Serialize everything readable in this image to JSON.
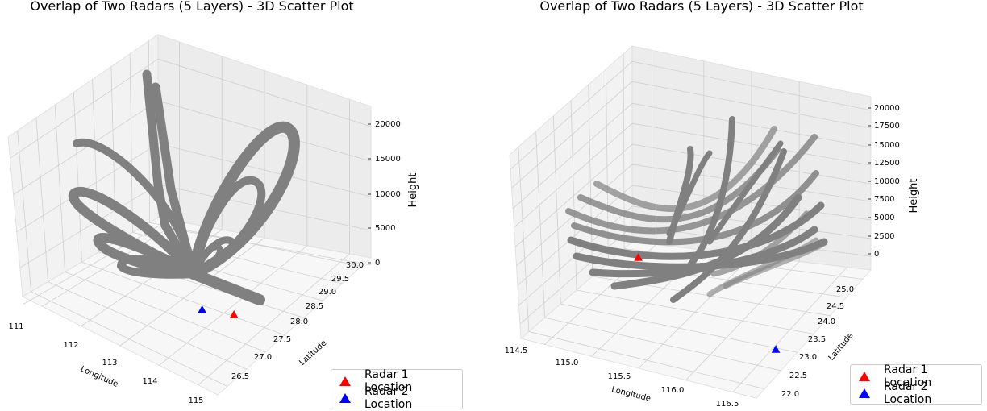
{
  "chart_data": [
    {
      "type": "scatter",
      "title": "Overlap of Two Radars (5 Layers) - 3D Scatter Plot",
      "xlabel": "Longitude",
      "ylabel": "Latitude",
      "zlabel": "Height",
      "x_ticks": [
        "111",
        "112",
        "113",
        "114",
        "115"
      ],
      "y_ticks": [
        "26.5",
        "27.0",
        "27.5",
        "28.0",
        "28.5",
        "29.0",
        "29.5",
        "30.0"
      ],
      "z_ticks": [
        "0",
        "5000",
        "10000",
        "15000",
        "20000"
      ],
      "xlim": [
        110.6,
        115.1
      ],
      "ylim": [
        26.3,
        30.3
      ],
      "zlim": [
        0,
        22000
      ],
      "point_color": "#808080",
      "radars": [
        {
          "name": "Radar 1 Location",
          "lon": 113.6,
          "lat": 28.7,
          "height": 0,
          "color": "#ff0000"
        },
        {
          "name": "Radar 2 Location",
          "lon": 113.1,
          "lat": 28.4,
          "height": 0,
          "color": "#0000ff"
        }
      ],
      "legend": {
        "position": "bottom-right",
        "entries": [
          "Radar 1 Location",
          "Radar 2 Location"
        ]
      }
    },
    {
      "type": "scatter",
      "title": "Overlap of Two Radars (5 Layers) - 3D Scatter Plot",
      "xlabel": "Longitude",
      "ylabel": "Latitude",
      "zlabel": "Height",
      "x_ticks": [
        "114.5",
        "115.0",
        "115.5",
        "116.0",
        "116.5"
      ],
      "y_ticks": [
        "22.0",
        "22.5",
        "23.0",
        "23.5",
        "24.0",
        "24.5",
        "25.0"
      ],
      "z_ticks": [
        "0",
        "2500",
        "5000",
        "7500",
        "10000",
        "12500",
        "15000",
        "17500",
        "20000"
      ],
      "xlim": [
        114.4,
        116.9
      ],
      "ylim": [
        21.8,
        25.3
      ],
      "zlim": [
        0,
        21500
      ],
      "point_color": "#808080",
      "radars": [
        {
          "name": "Radar 1 Location",
          "lon": 114.6,
          "lat": 24.9,
          "height": 0,
          "color": "#ff0000"
        },
        {
          "name": "Radar 2 Location",
          "lon": 116.6,
          "lat": 23.3,
          "height": 0,
          "color": "#0000ff"
        }
      ],
      "legend": {
        "position": "bottom-right",
        "entries": [
          "Radar 1 Location",
          "Radar 2 Location"
        ]
      }
    }
  ]
}
